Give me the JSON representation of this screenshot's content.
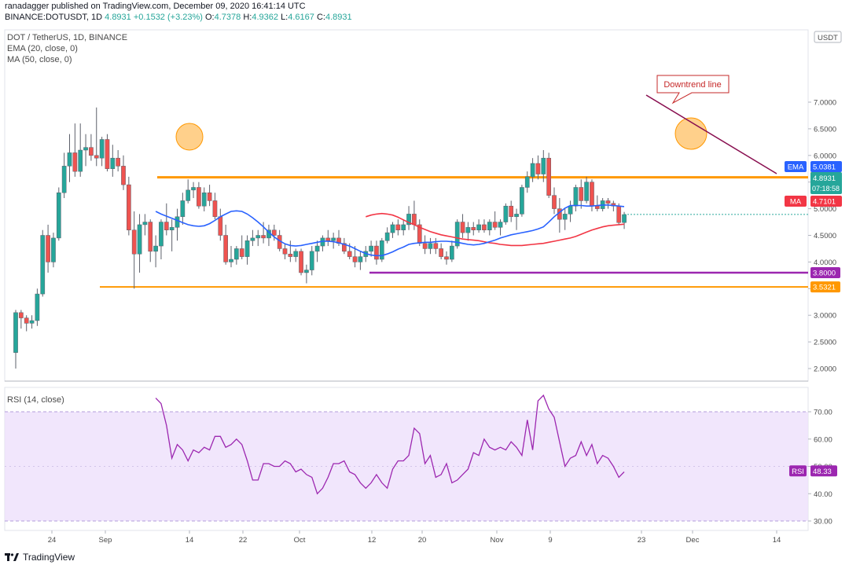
{
  "header": {
    "publish_line": "ranadagger published on TradingView.com, December 09, 2020 16:41:14 UTC",
    "symbol": "BINANCE:DOTUSDT, 1D",
    "last": "4.8931",
    "change": "+0.1532 (+3.23%)",
    "o_label": "O:",
    "o_value": "4.7378",
    "h_label": "H:",
    "h_value": "4.9362",
    "l_label": "L:",
    "l_value": "4.6167",
    "c_label": "C:",
    "c_value": "4.8931"
  },
  "legend": {
    "title": "DOT / TetherUS, 1D, BINANCE",
    "ema": "EMA (20, close, 0)",
    "ma": "MA (50, close, 0)",
    "rsi": "RSI (14, close)"
  },
  "footer": {
    "brand": "TradingView"
  },
  "colors": {
    "up": "#26a69a",
    "down": "#ef5350",
    "ema": "#2962ff",
    "ma": "#f23645",
    "orange": "#ff9800",
    "purple": "#9c27b0",
    "trend": "#880e4f",
    "rsi_line": "#9c27b0",
    "rsi_band": "#ede0fb",
    "rsi_band_line": "#b39ddb"
  },
  "chart_data": [
    {
      "type": "candlestick",
      "title": "DOT / TetherUS, 1D, BINANCE",
      "xlabel": "",
      "ylabel": "USDT",
      "y_axis_unit": "USDT",
      "ylim": [
        1.9,
        7.2
      ],
      "yticks": [
        "7.0000",
        "6.5000",
        "6.0000",
        "5.5000",
        "5.0000",
        "4.5000",
        "4.0000",
        "3.5000",
        "3.0000",
        "2.5000",
        "2.0000"
      ],
      "xticks": [
        "24",
        "Sep",
        "14",
        "22",
        "Oct",
        "12",
        "20",
        "Nov",
        "9",
        "23",
        "Dec",
        "14"
      ],
      "candles": [
        [
          2.3,
          3.1,
          2.0,
          3.05
        ],
        [
          3.05,
          3.1,
          2.75,
          2.95
        ],
        [
          2.95,
          3.0,
          2.7,
          2.85
        ],
        [
          2.85,
          3.0,
          2.75,
          2.9
        ],
        [
          2.9,
          3.5,
          2.8,
          3.4
        ],
        [
          3.4,
          4.6,
          3.35,
          4.5
        ],
        [
          4.5,
          4.7,
          3.8,
          4.0
        ],
        [
          4.0,
          4.55,
          3.9,
          4.45
        ],
        [
          4.45,
          5.4,
          4.4,
          5.3
        ],
        [
          5.3,
          6.05,
          5.2,
          5.8
        ],
        [
          5.8,
          6.4,
          5.5,
          6.05
        ],
        [
          6.05,
          6.6,
          5.6,
          5.7
        ],
        [
          5.7,
          6.6,
          5.6,
          6.1
        ],
        [
          6.1,
          6.4,
          5.8,
          6.15
        ],
        [
          6.15,
          6.4,
          5.9,
          6.0
        ],
        [
          6.0,
          6.9,
          5.8,
          5.95
        ],
        [
          5.95,
          6.35,
          5.8,
          6.3
        ],
        [
          6.3,
          6.4,
          5.7,
          5.75
        ],
        [
          5.75,
          6.2,
          5.6,
          5.95
        ],
        [
          5.95,
          6.1,
          5.7,
          5.8
        ],
        [
          5.8,
          6.0,
          5.35,
          5.45
        ],
        [
          5.45,
          5.6,
          4.5,
          4.6
        ],
        [
          4.6,
          4.95,
          3.5,
          4.15
        ],
        [
          4.15,
          4.9,
          3.8,
          4.7
        ],
        [
          4.7,
          4.9,
          4.5,
          4.75
        ],
        [
          4.75,
          4.8,
          4.0,
          4.2
        ],
        [
          4.2,
          4.5,
          3.9,
          4.3
        ],
        [
          4.3,
          4.8,
          4.05,
          4.75
        ],
        [
          4.75,
          5.1,
          4.5,
          4.6
        ],
        [
          4.6,
          4.8,
          4.2,
          4.65
        ],
        [
          4.65,
          5.0,
          4.4,
          4.85
        ],
        [
          4.85,
          5.3,
          4.7,
          5.15
        ],
        [
          5.15,
          5.55,
          5.1,
          5.35
        ],
        [
          5.35,
          5.5,
          5.2,
          5.4
        ],
        [
          5.4,
          5.5,
          5.0,
          5.05
        ],
        [
          5.05,
          5.4,
          4.95,
          5.3
        ],
        [
          5.3,
          5.45,
          5.05,
          5.15
        ],
        [
          5.15,
          5.3,
          4.8,
          4.85
        ],
        [
          4.85,
          5.0,
          4.4,
          4.5
        ],
        [
          4.5,
          4.7,
          3.95,
          4.0
        ],
        [
          4.0,
          4.3,
          3.9,
          4.05
        ],
        [
          4.05,
          4.3,
          3.95,
          4.25
        ],
        [
          4.25,
          4.5,
          4.05,
          4.1
        ],
        [
          4.1,
          4.5,
          3.95,
          4.4
        ],
        [
          4.4,
          4.6,
          4.3,
          4.45
        ],
        [
          4.45,
          4.6,
          4.3,
          4.5
        ],
        [
          4.5,
          4.75,
          4.35,
          4.45
        ],
        [
          4.45,
          4.7,
          4.3,
          4.6
        ],
        [
          4.6,
          4.7,
          4.4,
          4.5
        ],
        [
          4.5,
          4.6,
          4.2,
          4.25
        ],
        [
          4.25,
          4.35,
          4.05,
          4.15
        ],
        [
          4.15,
          4.4,
          4.0,
          4.1
        ],
        [
          4.1,
          4.25,
          4.0,
          4.2
        ],
        [
          4.2,
          4.25,
          3.75,
          3.8
        ],
        [
          3.8,
          3.95,
          3.6,
          3.85
        ],
        [
          3.85,
          4.3,
          3.75,
          4.2
        ],
        [
          4.2,
          4.4,
          4.0,
          4.3
        ],
        [
          4.3,
          4.5,
          4.2,
          4.45
        ],
        [
          4.45,
          4.6,
          4.3,
          4.4
        ],
        [
          4.4,
          4.55,
          4.25,
          4.45
        ],
        [
          4.45,
          4.6,
          4.3,
          4.35
        ],
        [
          4.35,
          4.45,
          4.15,
          4.2
        ],
        [
          4.2,
          4.35,
          4.05,
          4.1
        ],
        [
          4.1,
          4.3,
          3.9,
          4.0
        ],
        [
          4.0,
          4.2,
          3.85,
          4.1
        ],
        [
          4.1,
          4.3,
          4.0,
          4.2
        ],
        [
          4.2,
          4.4,
          4.1,
          4.3
        ],
        [
          4.3,
          4.4,
          3.95,
          4.05
        ],
        [
          4.05,
          4.45,
          4.0,
          4.4
        ],
        [
          4.4,
          4.65,
          4.35,
          4.55
        ],
        [
          4.55,
          4.75,
          4.45,
          4.7
        ],
        [
          4.7,
          4.8,
          4.5,
          4.6
        ],
        [
          4.6,
          4.8,
          4.5,
          4.7
        ],
        [
          4.7,
          5.05,
          4.6,
          4.9
        ],
        [
          4.9,
          5.15,
          4.6,
          4.7
        ],
        [
          4.7,
          4.8,
          4.3,
          4.35
        ],
        [
          4.35,
          4.5,
          4.15,
          4.25
        ],
        [
          4.25,
          4.45,
          4.15,
          4.35
        ],
        [
          4.35,
          4.45,
          4.15,
          4.25
        ],
        [
          4.25,
          4.35,
          4.05,
          4.1
        ],
        [
          4.1,
          4.2,
          3.95,
          4.05
        ],
        [
          4.05,
          4.4,
          4.0,
          4.3
        ],
        [
          4.3,
          4.8,
          4.25,
          4.75
        ],
        [
          4.75,
          4.9,
          4.45,
          4.55
        ],
        [
          4.55,
          4.75,
          4.4,
          4.65
        ],
        [
          4.65,
          4.75,
          4.5,
          4.6
        ],
        [
          4.6,
          4.8,
          4.55,
          4.7
        ],
        [
          4.7,
          4.8,
          4.55,
          4.6
        ],
        [
          4.6,
          4.8,
          4.5,
          4.75
        ],
        [
          4.75,
          4.95,
          4.6,
          4.65
        ],
        [
          4.65,
          4.8,
          4.5,
          4.75
        ],
        [
          4.75,
          5.1,
          4.7,
          5.05
        ],
        [
          5.05,
          5.15,
          4.75,
          4.85
        ],
        [
          4.85,
          5.0,
          4.6,
          4.9
        ],
        [
          4.9,
          5.45,
          4.85,
          5.4
        ],
        [
          5.4,
          5.7,
          5.3,
          5.6
        ],
        [
          5.6,
          5.95,
          5.5,
          5.85
        ],
        [
          5.85,
          6.0,
          5.55,
          5.65
        ],
        [
          5.65,
          6.1,
          5.5,
          5.95
        ],
        [
          5.95,
          6.05,
          5.2,
          5.25
        ],
        [
          5.25,
          5.4,
          4.9,
          5.0
        ],
        [
          5.0,
          5.2,
          4.55,
          4.8
        ],
        [
          4.8,
          5.0,
          4.6,
          4.9
        ],
        [
          4.9,
          5.15,
          4.75,
          5.05
        ],
        [
          5.05,
          5.45,
          4.95,
          5.4
        ],
        [
          5.4,
          5.55,
          5.0,
          5.15
        ],
        [
          5.15,
          5.6,
          5.1,
          5.5
        ],
        [
          5.5,
          5.55,
          4.95,
          5.05
        ],
        [
          5.05,
          5.25,
          4.95,
          5.0
        ],
        [
          5.0,
          5.2,
          4.95,
          5.15
        ],
        [
          5.15,
          5.2,
          5.0,
          5.1
        ],
        [
          5.1,
          5.15,
          4.95,
          5.05
        ],
        [
          5.05,
          5.1,
          4.7,
          4.74
        ],
        [
          4.74,
          4.94,
          4.62,
          4.89
        ]
      ],
      "series": [
        {
          "name": "EMA (20, close, 0)",
          "last": "5.0381",
          "values": [
            4.95,
            4.9,
            4.86,
            4.82,
            4.78,
            4.74,
            4.7,
            4.68,
            4.67,
            4.68,
            4.72,
            4.78,
            4.85,
            4.9,
            4.95,
            4.96,
            4.95,
            4.9,
            4.83,
            4.75,
            4.66,
            4.56,
            4.47,
            4.4,
            4.34,
            4.31,
            4.3,
            4.31,
            4.33,
            4.35,
            4.37,
            4.39,
            4.39,
            4.38,
            4.36,
            4.33,
            4.3,
            4.25,
            4.2,
            4.16,
            4.13,
            4.12,
            4.12,
            4.15,
            4.19,
            4.24,
            4.28,
            4.33,
            4.35,
            4.36,
            4.37,
            4.37,
            4.38,
            4.39,
            4.39,
            4.38,
            4.37,
            4.35,
            4.33,
            4.32,
            4.33,
            4.35,
            4.38,
            4.41,
            4.45,
            4.48,
            4.51,
            4.53,
            4.55,
            4.57,
            4.59,
            4.62,
            4.66,
            4.75,
            4.85,
            4.93,
            5.01,
            5.06,
            5.06,
            5.06,
            5.05,
            5.05,
            5.06,
            5.07,
            5.07,
            5.06,
            5.05,
            5.04
          ]
        },
        {
          "name": "MA (50, close, 0)",
          "last": "4.7101",
          "values": [
            4.85,
            4.88,
            4.9,
            4.91,
            4.9,
            4.88,
            4.84,
            4.79,
            4.74,
            4.7,
            4.65,
            4.61,
            4.57,
            4.54,
            4.51,
            4.49,
            4.47,
            4.45,
            4.43,
            4.42,
            4.41,
            4.4,
            4.38,
            4.36,
            4.35,
            4.33,
            4.32,
            4.31,
            4.31,
            4.31,
            4.32,
            4.33,
            4.34,
            4.35,
            4.37,
            4.39,
            4.41,
            4.43,
            4.45,
            4.48,
            4.52,
            4.56,
            4.6,
            4.63,
            4.66,
            4.68,
            4.69,
            4.7,
            4.71
          ]
        }
      ],
      "levels": [
        {
          "name": "resistance",
          "value": "5.5899",
          "color": "#ff9800"
        },
        {
          "name": "support",
          "value": "3.5321",
          "color": "#ff9800"
        },
        {
          "name": "support-purple",
          "value": "3.8000",
          "color": "#9c27b0"
        }
      ],
      "price_labels": {
        "ema_tag": "EMA",
        "ema_value": "5.0381",
        "last_value": "4.8931",
        "countdown": "07:18:58",
        "ma_tag": "MA",
        "ma_value": "4.7101",
        "currency": "USDT"
      },
      "annotations": [
        {
          "text": "Downtrend line"
        }
      ]
    },
    {
      "type": "line",
      "title": "RSI (14, close)",
      "ylim": [
        27,
        77
      ],
      "yticks": [
        "70.00",
        "60.00",
        "50.00",
        "40.00",
        "30.00"
      ],
      "band": [
        30,
        70
      ],
      "series": [
        {
          "name": "RSI (14, close)",
          "last": "48.33",
          "values": [
            75,
            73,
            65,
            53,
            58,
            56,
            52,
            56,
            55,
            57,
            56,
            61,
            61,
            57,
            58,
            60,
            58,
            52,
            45,
            45,
            51,
            51,
            50,
            50,
            52,
            51,
            48,
            49,
            47,
            46,
            40,
            42,
            46,
            51,
            51,
            52,
            48,
            47,
            44,
            42,
            44,
            47,
            44,
            42,
            49,
            52,
            52,
            54,
            64,
            62,
            51,
            54,
            46,
            47,
            51,
            44,
            45,
            47,
            49,
            55,
            54,
            60,
            57,
            56,
            57,
            56,
            59,
            57,
            54,
            67,
            56,
            74,
            76,
            71,
            68,
            59,
            50,
            53,
            54,
            59,
            54,
            58,
            51,
            54,
            53,
            50,
            46,
            48
          ]
        }
      ],
      "label_tag": "RSI",
      "label_value": "48.33"
    }
  ]
}
